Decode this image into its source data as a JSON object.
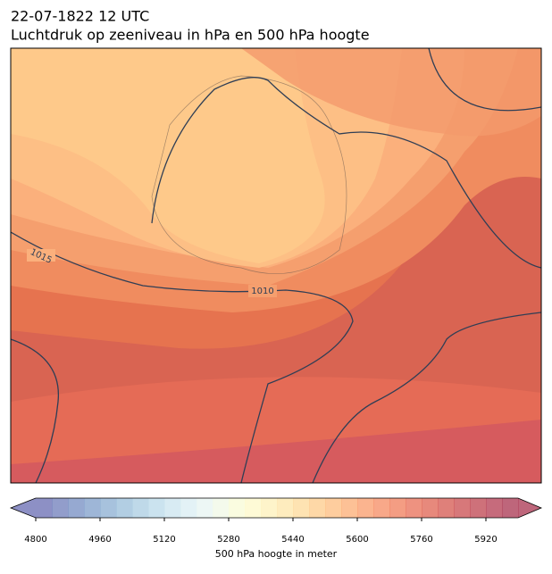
{
  "title": "22-07-1822 12 UTC",
  "subtitle": "Luchtdruk op zeeniveau in hPa en 500 hPa hoogte",
  "contour_labels": [
    "1015",
    "1010"
  ],
  "colorbar": {
    "label": "500 hPa hoogte in meter",
    "clim": [
      4800,
      6000
    ],
    "ticks": [
      4800,
      4960,
      5120,
      5280,
      5440,
      5600,
      5760,
      5920
    ],
    "colors": [
      "#676bb2",
      "#6d7cba",
      "#738cc1",
      "#7d9dc9",
      "#89aed1",
      "#98bed9",
      "#a9cce2",
      "#bad9ea",
      "#cbe4ef",
      "#daedf3",
      "#e7f4f1",
      "#f0f8e5",
      "#f8fbd6",
      "#fdf8c8",
      "#fef0b8",
      "#fee5a8",
      "#fed998",
      "#fdcb8a",
      "#fdbc7e",
      "#fcac73",
      "#f99b69",
      "#f58b61",
      "#f07c5a",
      "#e86e55",
      "#df6250",
      "#d4564e",
      "#c94b4d",
      "#be424e",
      "#b33a50",
      "#a8334f"
    ]
  }
}
